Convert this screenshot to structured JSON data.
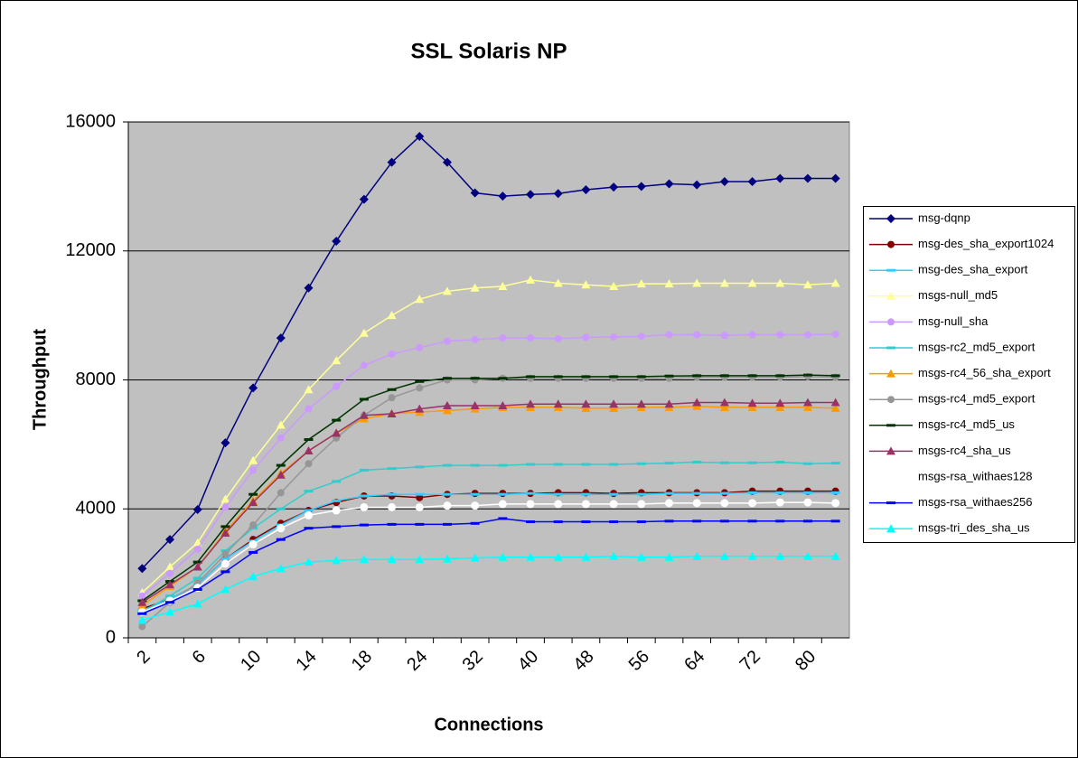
{
  "chart_data": {
    "type": "line",
    "title": "SSL Solaris NP",
    "x_label": "Connections",
    "y_label": "Throughput",
    "categories": [
      2,
      null,
      6,
      null,
      10,
      null,
      14,
      null,
      18,
      null,
      24,
      null,
      32,
      null,
      40,
      null,
      48,
      null,
      56,
      null,
      64,
      null,
      72,
      null,
      80,
      null
    ],
    "ylim": [
      0,
      16000
    ],
    "yticks": [
      0,
      4000,
      8000,
      12000,
      16000
    ],
    "grid": true,
    "legend": "right",
    "series": [
      {
        "name": "msg-dqnp",
        "color": "#000080",
        "marker": "diamond",
        "values": [
          2150,
          3050,
          3980,
          6050,
          7750,
          9300,
          10850,
          12300,
          13600,
          14750,
          15550,
          14750,
          13800,
          13700,
          13750,
          13780,
          13900,
          13980,
          14000,
          14080,
          14050,
          14150,
          14150,
          14250,
          14250,
          14250
        ]
      },
      {
        "name": "msg-des_sha_export1024",
        "color": "#800000",
        "marker": "circle",
        "values": [
          900,
          1200,
          1650,
          2450,
          3050,
          3550,
          3950,
          4200,
          4400,
          4400,
          4350,
          4450,
          4480,
          4480,
          4480,
          4500,
          4500,
          4480,
          4500,
          4500,
          4500,
          4500,
          4550,
          4550,
          4550,
          4550
        ]
      },
      {
        "name": "msg-des_sha_export",
        "color": "#33ccff",
        "marker": "dash",
        "values": [
          850,
          1200,
          1650,
          2450,
          3000,
          3500,
          3950,
          4250,
          4400,
          4450,
          4450,
          4450,
          4450,
          4450,
          4480,
          4450,
          4450,
          4450,
          4450,
          4480,
          4480,
          4480,
          4500,
          4500,
          4500,
          4500
        ]
      },
      {
        "name": "msgs-null_md5",
        "color": "#ffff99",
        "marker": "triangle",
        "values": [
          1400,
          2200,
          2950,
          4300,
          5500,
          6600,
          7700,
          8600,
          9450,
          10000,
          10500,
          10750,
          10850,
          10900,
          11100,
          11000,
          10950,
          10900,
          10980,
          10980,
          11000,
          11000,
          11000,
          11000,
          10950,
          11000
        ]
      },
      {
        "name": "msg-null_sha",
        "color": "#cc99ff",
        "marker": "circle",
        "values": [
          1300,
          2000,
          2750,
          4050,
          5200,
          6200,
          7100,
          7800,
          8450,
          8800,
          9000,
          9200,
          9250,
          9300,
          9300,
          9280,
          9320,
          9330,
          9350,
          9400,
          9400,
          9380,
          9400,
          9400,
          9400,
          9420
        ]
      },
      {
        "name": "msgs-rc2_md5_export",
        "color": "#33cccc",
        "marker": "dash",
        "values": [
          800,
          1300,
          1850,
          2700,
          3400,
          4000,
          4550,
          4850,
          5200,
          5250,
          5300,
          5350,
          5350,
          5350,
          5380,
          5380,
          5380,
          5380,
          5400,
          5420,
          5450,
          5430,
          5430,
          5450,
          5400,
          5420
        ]
      },
      {
        "name": "msgs-rc4_56_sha_export",
        "color": "#ff9900",
        "marker": "triangle",
        "values": [
          1000,
          1600,
          2200,
          3300,
          4250,
          5100,
          5800,
          6350,
          6800,
          6950,
          7000,
          7050,
          7100,
          7150,
          7150,
          7150,
          7120,
          7120,
          7150,
          7150,
          7180,
          7150,
          7150,
          7150,
          7150,
          7120
        ]
      },
      {
        "name": "msgs-rc4_md5_export",
        "color": "#969696",
        "marker": "circle",
        "values": [
          350,
          1100,
          1700,
          2600,
          3500,
          4500,
          5400,
          6200,
          6900,
          7450,
          7750,
          8000,
          8000,
          8050,
          8050,
          8050,
          8050,
          8050,
          8050,
          8050,
          8080,
          8080,
          8080,
          8080,
          8100,
          8080
        ]
      },
      {
        "name": "msgs-rc4_md5_us",
        "color": "#003300",
        "marker": "dash",
        "values": [
          1150,
          1750,
          2350,
          3450,
          4450,
          5350,
          6150,
          6750,
          7400,
          7700,
          7950,
          8050,
          8050,
          8050,
          8100,
          8100,
          8100,
          8100,
          8100,
          8120,
          8130,
          8130,
          8130,
          8130,
          8150,
          8130
        ]
      },
      {
        "name": "msgs-rc4_sha_us",
        "color": "#993366",
        "marker": "triangle",
        "values": [
          1100,
          1650,
          2200,
          3250,
          4200,
          5050,
          5800,
          6350,
          6900,
          6950,
          7100,
          7200,
          7200,
          7200,
          7250,
          7250,
          7250,
          7250,
          7250,
          7250,
          7300,
          7300,
          7280,
          7280,
          7300,
          7300
        ]
      },
      {
        "name": "msgs-rsa_withaes128",
        "color": "#ffffff",
        "marker": "circle",
        "values": [
          800,
          1150,
          1550,
          2300,
          2900,
          3400,
          3800,
          3950,
          4050,
          4050,
          4050,
          4100,
          4100,
          4150,
          4150,
          4150,
          4150,
          4150,
          4150,
          4180,
          4180,
          4180,
          4180,
          4200,
          4200,
          4180
        ]
      },
      {
        "name": "msgs-rsa_withaes256",
        "color": "#0000ff",
        "marker": "dash",
        "values": [
          750,
          1100,
          1500,
          2050,
          2650,
          3050,
          3400,
          3450,
          3500,
          3520,
          3520,
          3520,
          3550,
          3700,
          3600,
          3600,
          3600,
          3600,
          3600,
          3620,
          3620,
          3620,
          3620,
          3620,
          3620,
          3620
        ]
      },
      {
        "name": "msgs-tri_des_sha_us",
        "color": "#00ffff",
        "marker": "triangle",
        "values": [
          550,
          800,
          1050,
          1500,
          1900,
          2150,
          2350,
          2400,
          2430,
          2430,
          2430,
          2450,
          2480,
          2500,
          2500,
          2500,
          2500,
          2530,
          2500,
          2500,
          2530,
          2530,
          2530,
          2530,
          2530,
          2530
        ]
      }
    ]
  }
}
